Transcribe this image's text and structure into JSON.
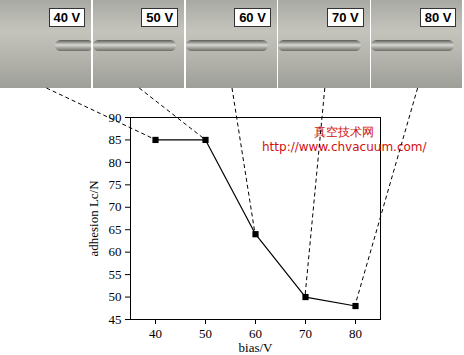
{
  "chart_data": {
    "type": "line",
    "x_label": "bias/V",
    "y_label": "adhesion Lc/N",
    "x": [
      40,
      50,
      60,
      70,
      80
    ],
    "values": [
      85,
      85,
      64,
      50,
      48
    ],
    "panel_labels": [
      "40 V",
      "50 V",
      "60 V",
      "70 V",
      "80 V"
    ],
    "annotations": [
      "真空技术网",
      "http://www.chvacuum.com/"
    ],
    "color": "#000000",
    "marker": "square",
    "line_style": "solid",
    "xlim": [
      35,
      85
    ],
    "xticks": [
      40,
      50,
      60,
      70,
      80
    ],
    "ylim": [
      45,
      90
    ],
    "yticks": [
      45,
      50,
      55,
      60,
      65,
      70,
      75,
      80,
      85,
      90
    ],
    "grid": false
  }
}
